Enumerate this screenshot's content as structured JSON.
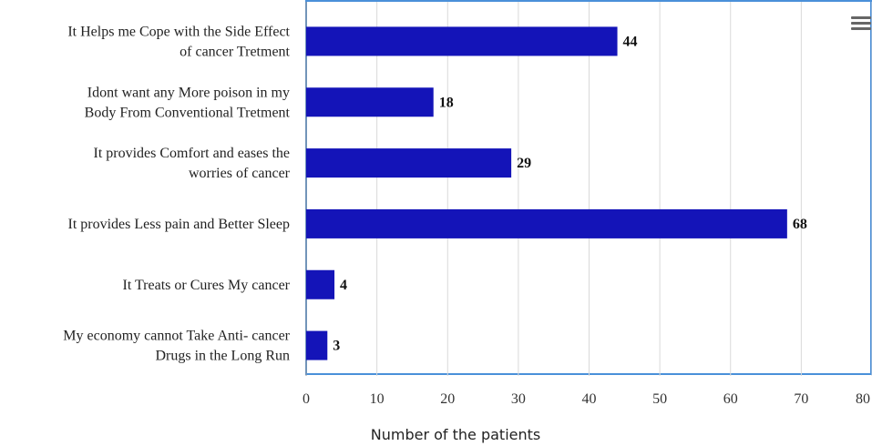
{
  "chart_data": {
    "type": "bar",
    "orientation": "horizontal",
    "categories": [
      [
        "It Helps me Cope with the Side Effect",
        "of cancer Tretment"
      ],
      [
        "Idont want any More poison in my",
        "Body From Conventional Tretment"
      ],
      [
        "It provides Comfort and eases the",
        "worries of cancer"
      ],
      [
        "It provides Less pain and Better Sleep"
      ],
      [
        "It Treats or Cures My cancer"
      ],
      [
        "My economy cannot Take Anti- cancer",
        "Drugs in the Long Run"
      ]
    ],
    "values": [
      44,
      18,
      29,
      68,
      4,
      3
    ],
    "xlabel": "Number of the patients",
    "xlim": [
      0,
      80
    ],
    "xticks": [
      0,
      10,
      20,
      30,
      40,
      50,
      60,
      70,
      80
    ],
    "xtick_labels": [
      "0",
      "10",
      "20",
      "30",
      "40",
      "50",
      "60",
      "70",
      "80"
    ],
    "bar_color": "#1414b8",
    "grid": true,
    "legend": "none",
    "data_labels": true
  },
  "menu_icon": "hamburger-menu-icon"
}
